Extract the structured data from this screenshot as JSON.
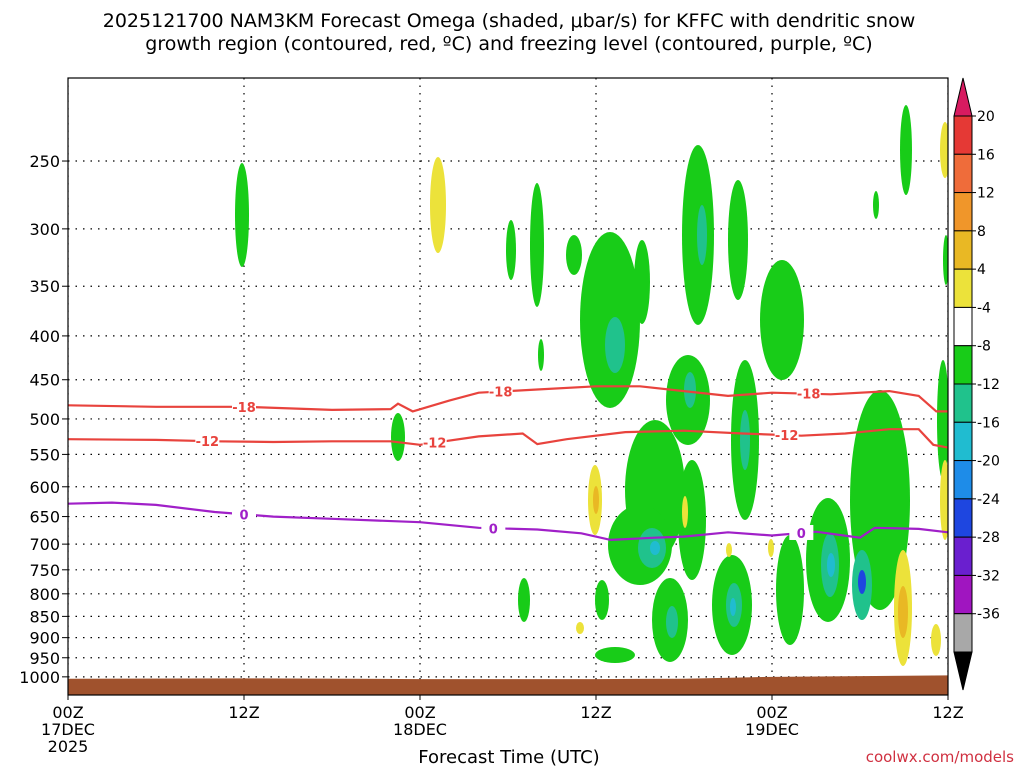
{
  "chart_data": {
    "type": "heatmap",
    "title_line1": "2025121700 NAM3KM Forecast Omega (shaded, μbar/s) for KFFC with dendritic snow",
    "title_line2": "growth region (contoured, red, ºC) and freezing level (contoured, purple, ºC)",
    "xlabel": "Forecast Time (UTC)",
    "ylabel": "",
    "credit": "coolwx.com/models",
    "x_unit": "forecast hours",
    "xlim": [
      0,
      60
    ],
    "ylim": [
      1050,
      200
    ],
    "y_ticks": [
      250,
      300,
      350,
      400,
      450,
      500,
      550,
      600,
      650,
      700,
      750,
      800,
      850,
      900,
      950,
      1000
    ],
    "x_ticks": [
      {
        "hour": 0,
        "lines": [
          "00Z",
          "17DEC",
          "2025"
        ]
      },
      {
        "hour": 12,
        "lines": [
          "12Z"
        ]
      },
      {
        "hour": 24,
        "lines": [
          "00Z",
          "18DEC"
        ]
      },
      {
        "hour": 36,
        "lines": [
          "12Z"
        ]
      },
      {
        "hour": 48,
        "lines": [
          "00Z",
          "19DEC"
        ]
      },
      {
        "hour": 60,
        "lines": [
          "12Z"
        ]
      }
    ],
    "colorbar": {
      "labels": [
        "20",
        "16",
        "12",
        "8",
        "4",
        "-4",
        "-8",
        "-12",
        "-16",
        "-20",
        "-24",
        "-28",
        "-32",
        "-36"
      ],
      "colors": [
        "#d81b60",
        "#e53935",
        "#ef6c3a",
        "#f0962a",
        "#e9b824",
        "#ece23a",
        "#ffffff",
        "#18cc18",
        "#20c28c",
        "#20bcd0",
        "#1e8ce8",
        "#1e46e0",
        "#6a1fcf",
        "#a015c0",
        "#a8a8a8",
        "#000000"
      ]
    },
    "isotherm_labels": {
      "dgz_top": "-18",
      "dgz_bottom": "-12",
      "freezing": "0"
    },
    "series": [
      {
        "name": "-18",
        "color": "#e8433d",
        "points": [
          [
            0,
            482
          ],
          [
            6,
            484
          ],
          [
            12,
            484
          ],
          [
            18,
            488
          ],
          [
            22,
            487
          ],
          [
            22.5,
            480
          ],
          [
            23.5,
            490
          ],
          [
            26,
            476
          ],
          [
            28,
            466
          ],
          [
            32,
            462
          ],
          [
            36,
            458
          ],
          [
            39,
            458
          ],
          [
            42,
            464
          ],
          [
            45,
            470
          ],
          [
            48,
            466
          ],
          [
            52,
            468
          ],
          [
            56,
            464
          ],
          [
            58,
            470
          ],
          [
            59.2,
            490
          ],
          [
            60,
            490
          ]
        ]
      },
      {
        "name": "-12",
        "color": "#e8433d",
        "points": [
          [
            0,
            528
          ],
          [
            6,
            529
          ],
          [
            10,
            531
          ],
          [
            14,
            532
          ],
          [
            18,
            531
          ],
          [
            22,
            531
          ],
          [
            24,
            536
          ],
          [
            28,
            524
          ],
          [
            31,
            520
          ],
          [
            32,
            535
          ],
          [
            34,
            528
          ],
          [
            38,
            518
          ],
          [
            42,
            516
          ],
          [
            46,
            520
          ],
          [
            50,
            523
          ],
          [
            53,
            520
          ],
          [
            56,
            514
          ],
          [
            58,
            514
          ],
          [
            59,
            536
          ],
          [
            60,
            540
          ]
        ]
      },
      {
        "name": "0",
        "color": "#a020c8",
        "points": [
          [
            0,
            628
          ],
          [
            3,
            626
          ],
          [
            6,
            630
          ],
          [
            10,
            642
          ],
          [
            14,
            650
          ],
          [
            18,
            654
          ],
          [
            24,
            660
          ],
          [
            28,
            670
          ],
          [
            32,
            673
          ],
          [
            35,
            680
          ],
          [
            37,
            692
          ],
          [
            40,
            688
          ],
          [
            42,
            686
          ],
          [
            45,
            678
          ],
          [
            48,
            684
          ],
          [
            51,
            677
          ],
          [
            54,
            688
          ],
          [
            55,
            670
          ],
          [
            58,
            672
          ],
          [
            60,
            678
          ]
        ]
      }
    ],
    "ground_level": [
      [
        0,
        1005
      ],
      [
        12,
        1004
      ],
      [
        24,
        1006
      ],
      [
        36,
        1006
      ],
      [
        42,
        1005
      ],
      [
        48,
        1000
      ],
      [
        60,
        996
      ]
    ]
  }
}
